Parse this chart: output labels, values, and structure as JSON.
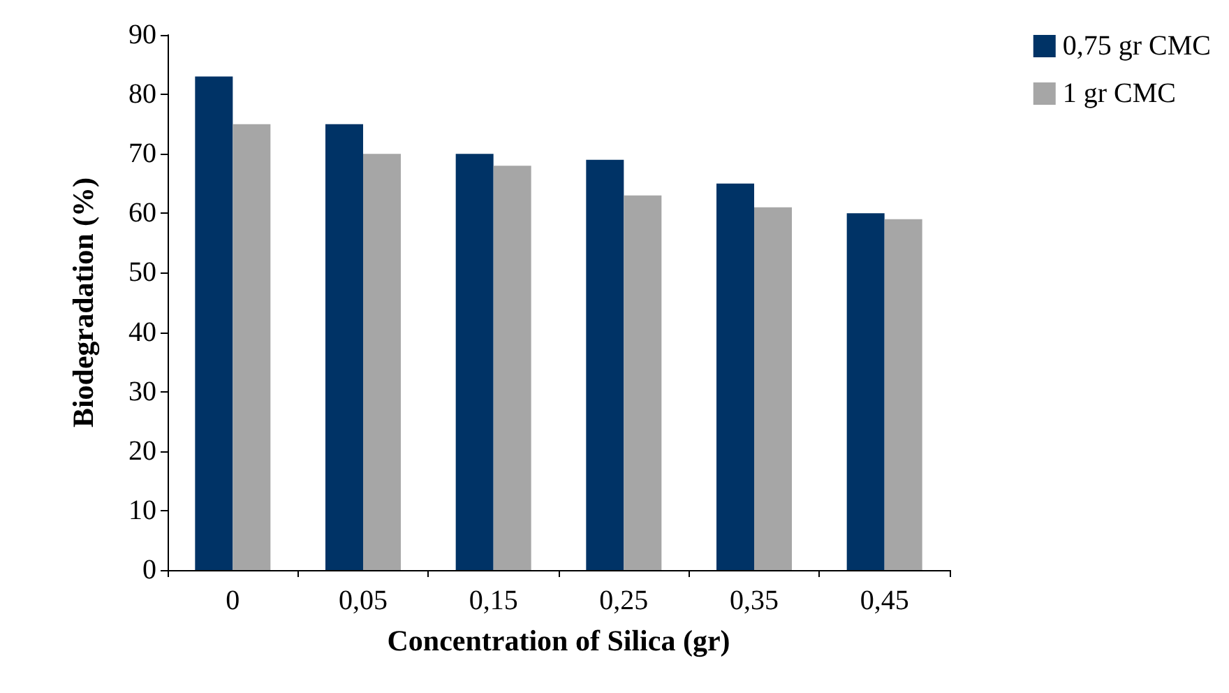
{
  "chart_data": {
    "type": "bar",
    "xlabel": "Concentration of Silica (gr)",
    "ylabel": "Biodegradation (%)",
    "categories": [
      "0",
      "0,05",
      "0,15",
      "0,25",
      "0,35",
      "0,45"
    ],
    "series": [
      {
        "name": "0,75 gr CMC",
        "color": "#003366",
        "values": [
          83,
          75,
          70,
          69,
          65,
          60
        ]
      },
      {
        "name": "1 gr CMC",
        "color": "#a6a6a6",
        "values": [
          75,
          70,
          68,
          63,
          61,
          59
        ]
      }
    ],
    "ylim": [
      0,
      90
    ],
    "yticks": [
      0,
      10,
      20,
      30,
      40,
      50,
      60,
      70,
      80,
      90
    ],
    "grid": false,
    "legend": "top right"
  }
}
